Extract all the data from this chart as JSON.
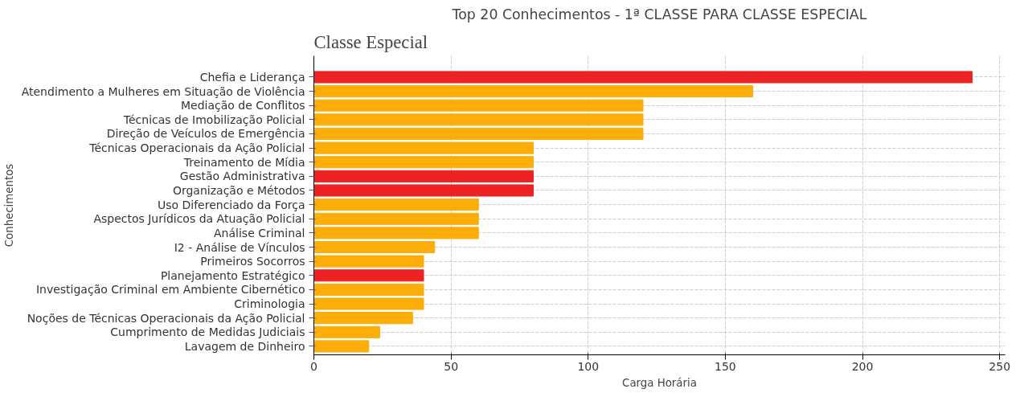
{
  "chart_data": {
    "type": "bar",
    "orientation": "horizontal",
    "title": "Top 20 Conhecimentos - 1ª CLASSE PARA CLASSE ESPECIAL",
    "annotations": [
      "Classe Especial"
    ],
    "xlabel": "Carga Horária",
    "ylabel": "Conhecimentos",
    "categories": [
      "Chefia e Liderança",
      "Atendimento a Mulheres em Situação de Violência",
      "Mediação de Conflitos",
      "Técnicas de Imobilização Policial",
      "Direção de Veículos de Emergência",
      "Técnicas Operacionais da Ação Policial",
      "Treinamento de Mídia",
      "Gestão Administrativa",
      "Organização e Métodos",
      "Uso Diferenciado da Força",
      "Aspectos Jurídicos da Atuação Policial",
      "Análise Criminal",
      "I2 - Análise de Vínculos",
      "Primeiros Socorros",
      "Planejamento Estratégico",
      "Investigação Criminal em Ambiente Cibernético",
      "Criminologia",
      "Noções de Técnicas Operacionais da Ação Policial",
      "Cumprimento de Medidas Judiciais",
      "Lavagem de Dinheiro"
    ],
    "values": [
      240,
      160,
      120,
      120,
      120,
      80,
      80,
      80,
      80,
      60,
      60,
      60,
      44,
      40,
      40,
      40,
      40,
      36,
      24,
      20
    ],
    "colors": [
      "#ee2222",
      "#fcad08",
      "#fcad08",
      "#fcad08",
      "#fcad08",
      "#fcad08",
      "#fcad08",
      "#ee2222",
      "#ee2222",
      "#fcad08",
      "#fcad08",
      "#fcad08",
      "#fcad08",
      "#fcad08",
      "#ee2222",
      "#fcad08",
      "#fcad08",
      "#fcad08",
      "#fcad08",
      "#fcad08"
    ],
    "xlim": [
      0,
      252
    ],
    "xticks": [
      0,
      50,
      100,
      150,
      200,
      250
    ],
    "grid": true
  }
}
